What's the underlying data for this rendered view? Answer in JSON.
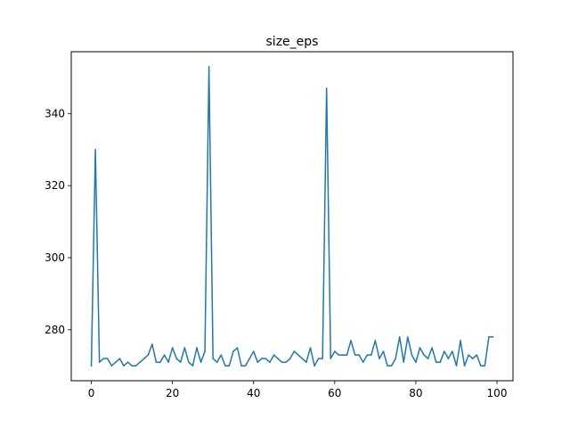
{
  "chart_data": {
    "type": "line",
    "title": "size_eps",
    "xlabel": "",
    "ylabel": "",
    "xlim": [
      -4.95,
      103.95
    ],
    "ylim": [
      265.85,
      357.15
    ],
    "x_ticks": [
      0,
      20,
      40,
      60,
      80,
      100
    ],
    "y_ticks": [
      280,
      300,
      320,
      340
    ],
    "grid": false,
    "line_color": "#1f77b4",
    "series": [
      {
        "x": [
          0,
          1,
          2,
          3,
          4,
          5,
          6,
          7,
          8,
          9,
          10,
          11,
          12,
          13,
          14,
          15,
          16,
          17,
          18,
          19,
          20,
          21,
          22,
          23,
          24,
          25,
          26,
          27,
          28,
          29,
          30,
          31,
          32,
          33,
          34,
          35,
          36,
          37,
          38,
          39,
          40,
          41,
          42,
          43,
          44,
          45,
          46,
          47,
          48,
          49,
          50,
          51,
          52,
          53,
          54,
          55,
          56,
          57,
          58,
          59,
          60,
          61,
          62,
          63,
          64,
          65,
          66,
          67,
          68,
          69,
          70,
          71,
          72,
          73,
          74,
          75,
          76,
          77,
          78,
          79,
          80,
          81,
          82,
          83,
          84,
          85,
          86,
          87,
          88,
          89,
          90,
          91,
          92,
          93,
          94,
          95,
          96,
          97,
          98,
          99
        ],
        "values": [
          270,
          330,
          271,
          272,
          272,
          270,
          271,
          272,
          270,
          271,
          270,
          270,
          271,
          272,
          273,
          276,
          271,
          271,
          273,
          271,
          275,
          272,
          271,
          275,
          271,
          270,
          275,
          271,
          274,
          353,
          272,
          271,
          273,
          270,
          270,
          274,
          275,
          270,
          270,
          272,
          274,
          271,
          272,
          272,
          271,
          273,
          272,
          271,
          271,
          272,
          274,
          273,
          272,
          271,
          275,
          270,
          272,
          272,
          347,
          272,
          274,
          273,
          273,
          273,
          277,
          273,
          273,
          271,
          273,
          273,
          277,
          272,
          274,
          270,
          270,
          272,
          278,
          271,
          278,
          273,
          271,
          275,
          273,
          272,
          275,
          271,
          271,
          274,
          272,
          274,
          270,
          277,
          270,
          273,
          272,
          273,
          270,
          270,
          278,
          278
        ]
      }
    ]
  }
}
